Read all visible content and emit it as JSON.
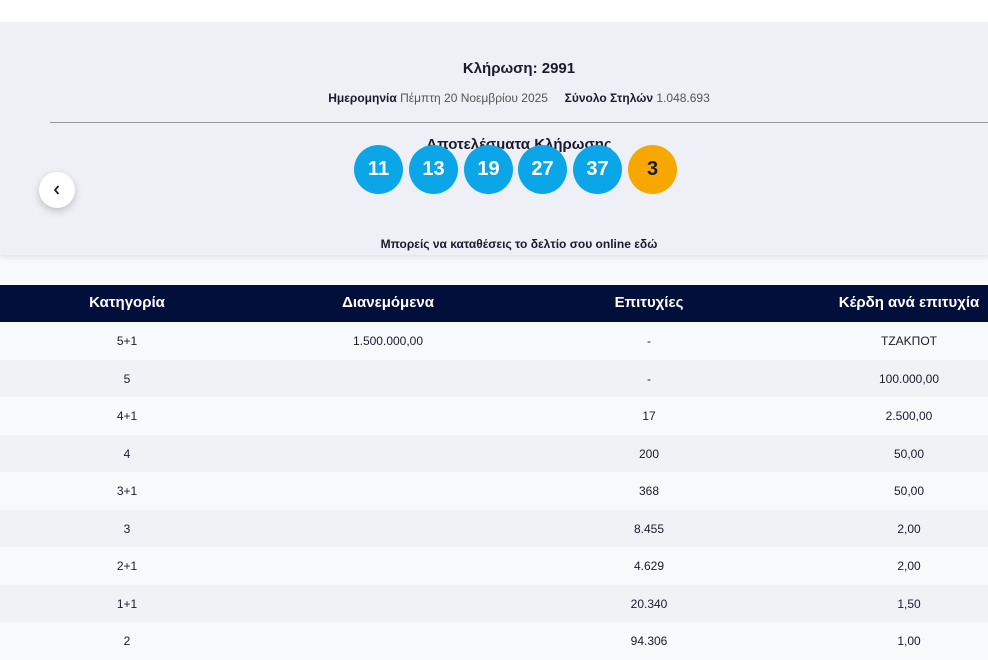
{
  "draw": {
    "title": "Κλήρωση: 2991",
    "date_label": "Ημερομηνία",
    "date": "Πέμπτη 20 Νοεμβρίου 2025",
    "columns_label": "Σύνολο Στηλών",
    "columns": "1.048.693"
  },
  "results": {
    "title": "Αποτελέσματα Κλήρωσης",
    "numbers": [
      11,
      13,
      19,
      27,
      37
    ],
    "bonus": 3,
    "note": "Μπορείς να καταθέσεις το δελτίο σου online εδώ"
  },
  "table": {
    "headers": [
      "Κατηγορία",
      "Διανεμόμενα",
      "Επιτυχίες",
      "Κέρδη ανά επιτυχία"
    ],
    "rows": [
      {
        "category": "5+1",
        "distributed": "1.500.000,00",
        "winners": "-",
        "prize": "ΤΖΑΚΠΟΤ"
      },
      {
        "category": "5",
        "winners": "-",
        "prize": "100.000,00"
      },
      {
        "category": "4+1",
        "winners": "17",
        "prize": "2.500,00"
      },
      {
        "category": "4",
        "winners": "200",
        "prize": "50,00"
      },
      {
        "category": "3+1",
        "winners": "368",
        "prize": "50,00"
      },
      {
        "category": "3",
        "winners": "8.455",
        "prize": "2,00"
      },
      {
        "category": "2+1",
        "winners": "4.629",
        "prize": "2,00"
      },
      {
        "category": "1+1",
        "winners": "20.340",
        "prize": "1,50"
      },
      {
        "category": "2",
        "winners": "94.306",
        "prize": "1,00"
      }
    ]
  }
}
